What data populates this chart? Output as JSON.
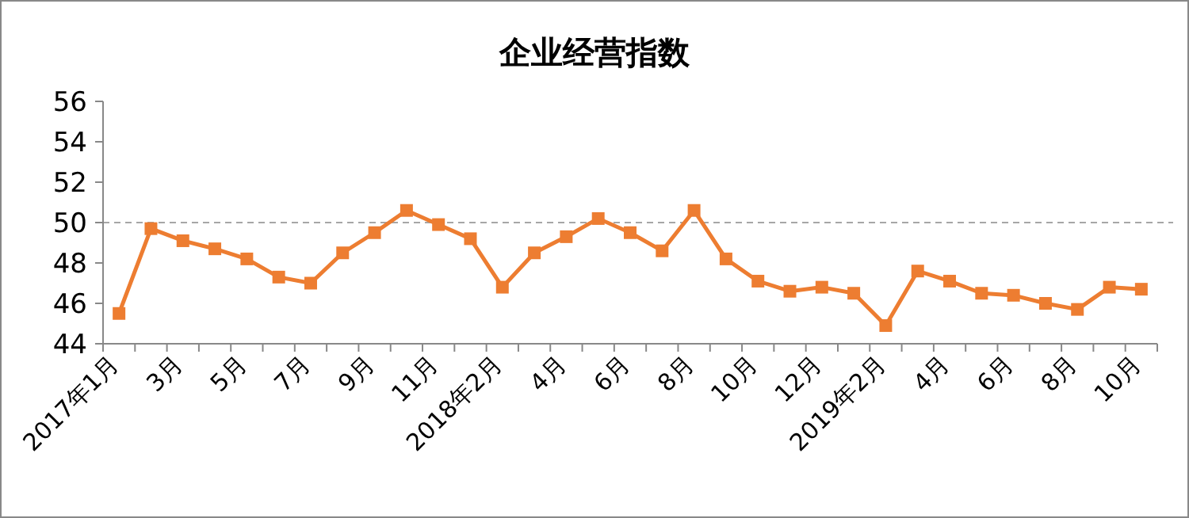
{
  "chart_data": {
    "type": "line",
    "title": "企业经营指数",
    "categories": [
      "2017年1月",
      null,
      "3月",
      null,
      "5月",
      null,
      "7月",
      null,
      "9月",
      null,
      "11月",
      null,
      "2018年2月",
      null,
      "4月",
      null,
      "6月",
      null,
      "8月",
      null,
      "10月",
      null,
      "12月",
      null,
      "2019年2月",
      null,
      "4月",
      null,
      "6月",
      null,
      "8月",
      null,
      "10月"
    ],
    "series": [
      {
        "color": "#ed7d31",
        "values": [
          45.5,
          49.7,
          49.1,
          48.7,
          48.2,
          47.3,
          47.0,
          48.5,
          49.5,
          50.6,
          49.9,
          49.2,
          46.8,
          48.5,
          49.3,
          50.2,
          49.5,
          48.6,
          50.6,
          48.2,
          47.1,
          46.6,
          46.8,
          46.5,
          44.9,
          47.6,
          47.1,
          46.5,
          46.4,
          46.0,
          45.7,
          46.8,
          46.7
        ]
      }
    ],
    "ylim": [
      44,
      56
    ],
    "yticks": [
      44,
      46,
      48,
      50,
      52,
      54,
      56
    ],
    "grid": false,
    "marker": "square",
    "line_style": "solid",
    "ref_lines": [
      {
        "axis": "y",
        "value": 50,
        "color": "#a6a6a6",
        "line_style": "dashed"
      }
    ]
  }
}
